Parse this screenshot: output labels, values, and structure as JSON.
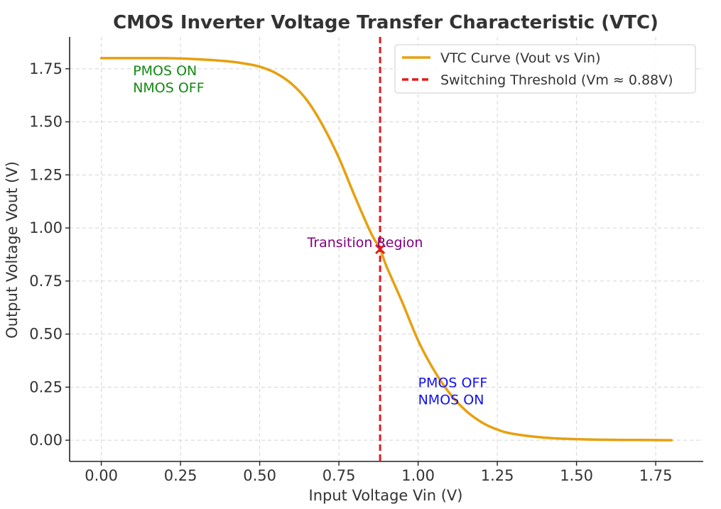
{
  "chart_data": {
    "type": "line",
    "title": "CMOS Inverter Voltage Transfer Characteristic (VTC)",
    "xlabel": "Input Voltage Vin (V)",
    "ylabel": "Output Voltage Vout (V)",
    "xlim": [
      -0.1,
      1.9
    ],
    "ylim": [
      -0.1,
      1.9
    ],
    "xticks": [
      0.0,
      0.25,
      0.5,
      0.75,
      1.0,
      1.25,
      1.5,
      1.75
    ],
    "xtick_labels": [
      "0.00",
      "0.25",
      "0.50",
      "0.75",
      "1.00",
      "1.25",
      "1.50",
      "1.75"
    ],
    "yticks": [
      0.0,
      0.25,
      0.5,
      0.75,
      1.0,
      1.25,
      1.5,
      1.75
    ],
    "ytick_labels": [
      "0.00",
      "0.25",
      "0.50",
      "0.75",
      "1.00",
      "1.25",
      "1.50",
      "1.75"
    ],
    "grid": true,
    "legend_position": "top-right",
    "series": [
      {
        "name": "VTC Curve (Vout vs Vin)",
        "color": "#e6a00f",
        "style": "solid",
        "x": [
          0.0,
          0.1,
          0.2,
          0.3,
          0.4,
          0.45,
          0.5,
          0.55,
          0.6,
          0.65,
          0.7,
          0.75,
          0.8,
          0.85,
          0.88,
          0.9,
          0.95,
          1.0,
          1.05,
          1.1,
          1.15,
          1.2,
          1.25,
          1.3,
          1.4,
          1.5,
          1.6,
          1.7,
          1.8
        ],
        "y": [
          1.8,
          1.8,
          1.8,
          1.795,
          1.785,
          1.775,
          1.76,
          1.73,
          1.68,
          1.6,
          1.48,
          1.33,
          1.15,
          0.98,
          0.9,
          0.82,
          0.65,
          0.47,
          0.33,
          0.22,
          0.14,
          0.085,
          0.05,
          0.03,
          0.012,
          0.005,
          0.002,
          0.001,
          0.0
        ]
      },
      {
        "name": "Switching Threshold (Vm ≈ 0.88V)",
        "color": "#e31a1c",
        "style": "dashed",
        "vline_x": 0.88
      }
    ],
    "marker": {
      "x": 0.88,
      "y": 0.9,
      "symbol": "x",
      "color": "#e31a1c"
    },
    "annotations": [
      {
        "lines": [
          "PMOS ON",
          "NMOS OFF"
        ],
        "x": 0.1,
        "y": 1.72,
        "color": "#138a13"
      },
      {
        "lines": [
          "Transition Region"
        ],
        "x": 0.65,
        "y": 0.91,
        "color": "#800080"
      },
      {
        "lines": [
          "PMOS OFF",
          "NMOS ON"
        ],
        "x": 1.0,
        "y": 0.25,
        "color": "#1111ee"
      }
    ]
  }
}
